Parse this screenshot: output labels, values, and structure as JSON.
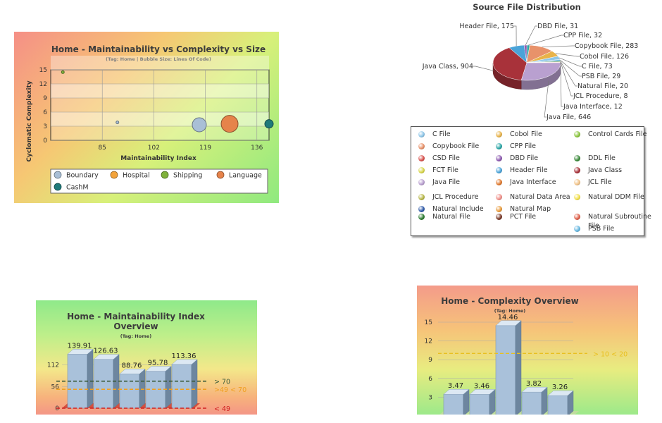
{
  "chart_data": [
    {
      "type": "scatter",
      "title": "Home - Maintainability vs Complexity vs Size",
      "subtitle": "(Tag: Home | Bubble Size: Lines Of Code)",
      "xlabel": "Maintainability Index",
      "ylabel": "Cyclomatic Complexity",
      "xlim": [
        68,
        140
      ],
      "ylim": [
        0,
        15
      ],
      "xticks": [
        "85",
        "102",
        "119",
        "136"
      ],
      "yticks": [
        "0",
        "3",
        "6",
        "9",
        "12",
        "15"
      ],
      "series": [
        {
          "name": "Boundary",
          "color": "#a9bfd6",
          "points": [
            {
              "x": 90,
              "y": 3.8,
              "size": 2
            },
            {
              "x": 117,
              "y": 3.3,
              "size": 20
            }
          ]
        },
        {
          "name": "Hospital",
          "color": "#f3a33a",
          "points": []
        },
        {
          "name": "Shipping",
          "color": "#7fb13a",
          "points": [
            {
              "x": 72,
              "y": 14.5,
              "size": 2
            }
          ]
        },
        {
          "name": "Language",
          "color": "#e6834b",
          "points": [
            {
              "x": 127,
              "y": 3.5,
              "size": 24
            }
          ]
        },
        {
          "name": "CashM",
          "color": "#1f7a7a",
          "points": [
            {
              "x": 140,
              "y": 3.5,
              "size": 12
            }
          ]
        }
      ]
    },
    {
      "type": "pie",
      "title": "Source File Distribution",
      "slices": [
        {
          "label": "Header File",
          "value": 175,
          "text": "Header File, 175",
          "color": "#4aa3d8"
        },
        {
          "label": "DBD File",
          "value": 31,
          "text": "DBD File, 31",
          "color": "#8d5bb0"
        },
        {
          "label": "CPP File",
          "value": 32,
          "text": "CPP File, 32",
          "color": "#2aa6a6"
        },
        {
          "label": "Copybook File",
          "value": 283,
          "text": "Copybook File, 283",
          "color": "#e8926a"
        },
        {
          "label": "Cobol File",
          "value": 126,
          "text": "Cobol File, 126",
          "color": "#e8b34a"
        },
        {
          "label": "C File",
          "value": 73,
          "text": "C File, 73",
          "color": "#8ec6e8"
        },
        {
          "label": "PSB File",
          "value": 29,
          "text": "PSB File, 29",
          "color": "#66b7e0"
        },
        {
          "label": "Natural File",
          "value": 20,
          "text": "Natural File, 20",
          "color": "#2e7d32"
        },
        {
          "label": "JCL Procedure",
          "value": 8,
          "text": "JCL Procedure, 8",
          "color": "#b8b84a"
        },
        {
          "label": "Java Interface",
          "value": 12,
          "text": "Java Interface, 12",
          "color": "#e07a30"
        },
        {
          "label": "Java File",
          "value": 646,
          "text": "Java File, 646",
          "color": "#b9a0d0"
        },
        {
          "label": "Java Class",
          "value": 904,
          "text": "Java Class, 904",
          "color": "#a8323a"
        }
      ],
      "legend": [
        {
          "label": "C File",
          "color": "#8ec6e8"
        },
        {
          "label": "Cobol File",
          "color": "#e8b34a"
        },
        {
          "label": "Control Cards File",
          "color": "#8cc63f"
        },
        {
          "label": "Copybook File",
          "color": "#e8926a"
        },
        {
          "label": "CPP File",
          "color": "#2aa6a6"
        },
        {
          "label": "CSD File",
          "color": "#d9534f"
        },
        {
          "label": "DBD File",
          "color": "#8d5bb0"
        },
        {
          "label": "DDL File",
          "color": "#3c8a3c"
        },
        {
          "label": "FCT File",
          "color": "#d8d64a"
        },
        {
          "label": "Header File",
          "color": "#4aa3d8"
        },
        {
          "label": "Java Class",
          "color": "#a8323a"
        },
        {
          "label": "Java File",
          "color": "#b9a0d0"
        },
        {
          "label": "Java Interface",
          "color": "#e07a30"
        },
        {
          "label": "JCL File",
          "color": "#f2c48a"
        },
        {
          "label": "JCL Procedure",
          "color": "#b8b84a"
        },
        {
          "label": "Natural Data Area",
          "color": "#f0908a"
        },
        {
          "label": "Natural DDM File",
          "color": "#f2e04a"
        },
        {
          "label": "Natural Include",
          "color": "#2f5aa8"
        },
        {
          "label": "Natural Map",
          "color": "#e89a3a"
        },
        {
          "label": "Natural Subroutine File",
          "color": "#e0604a"
        },
        {
          "label": "Natural File",
          "color": "#2e7d32"
        },
        {
          "label": "PCT File",
          "color": "#7a3a2a"
        },
        {
          "label": "PSB File",
          "color": "#66b7e0"
        }
      ]
    },
    {
      "type": "bar",
      "title_line1": "Home - Maintainability Index",
      "title_line2": "Overview",
      "subtitle": "(Tag: Home)",
      "values": [
        139.91,
        126.63,
        88.76,
        95.78,
        113.36
      ],
      "labels": [
        "139.91",
        "126.63",
        "88.76",
        "95.78",
        "113.36"
      ],
      "ylim": [
        0,
        168
      ],
      "yticks": [
        "0",
        "56",
        "112"
      ],
      "trend_lines": [
        {
          "value": 70,
          "text": "> 70",
          "color": "#3a5a3a"
        },
        {
          "value": 49,
          "text": ">49 < 70",
          "color": "#f0a020"
        },
        {
          "value": 0,
          "text": "< 49",
          "color": "#d02020"
        }
      ]
    },
    {
      "type": "bar",
      "title": "Home - Complexity Overview",
      "subtitle": "(Tag: Home)",
      "values": [
        3.47,
        3.46,
        14.46,
        3.82,
        3.26
      ],
      "labels": [
        "3.47",
        "3.46",
        "14.46",
        "3.82",
        "3.26"
      ],
      "ylim": [
        0,
        15
      ],
      "yticks": [
        "3",
        "6",
        "9",
        "12",
        "15"
      ],
      "trend_lines": [
        {
          "value": 10,
          "text": "> 10 < 20",
          "color": "#e8c020"
        }
      ]
    }
  ]
}
